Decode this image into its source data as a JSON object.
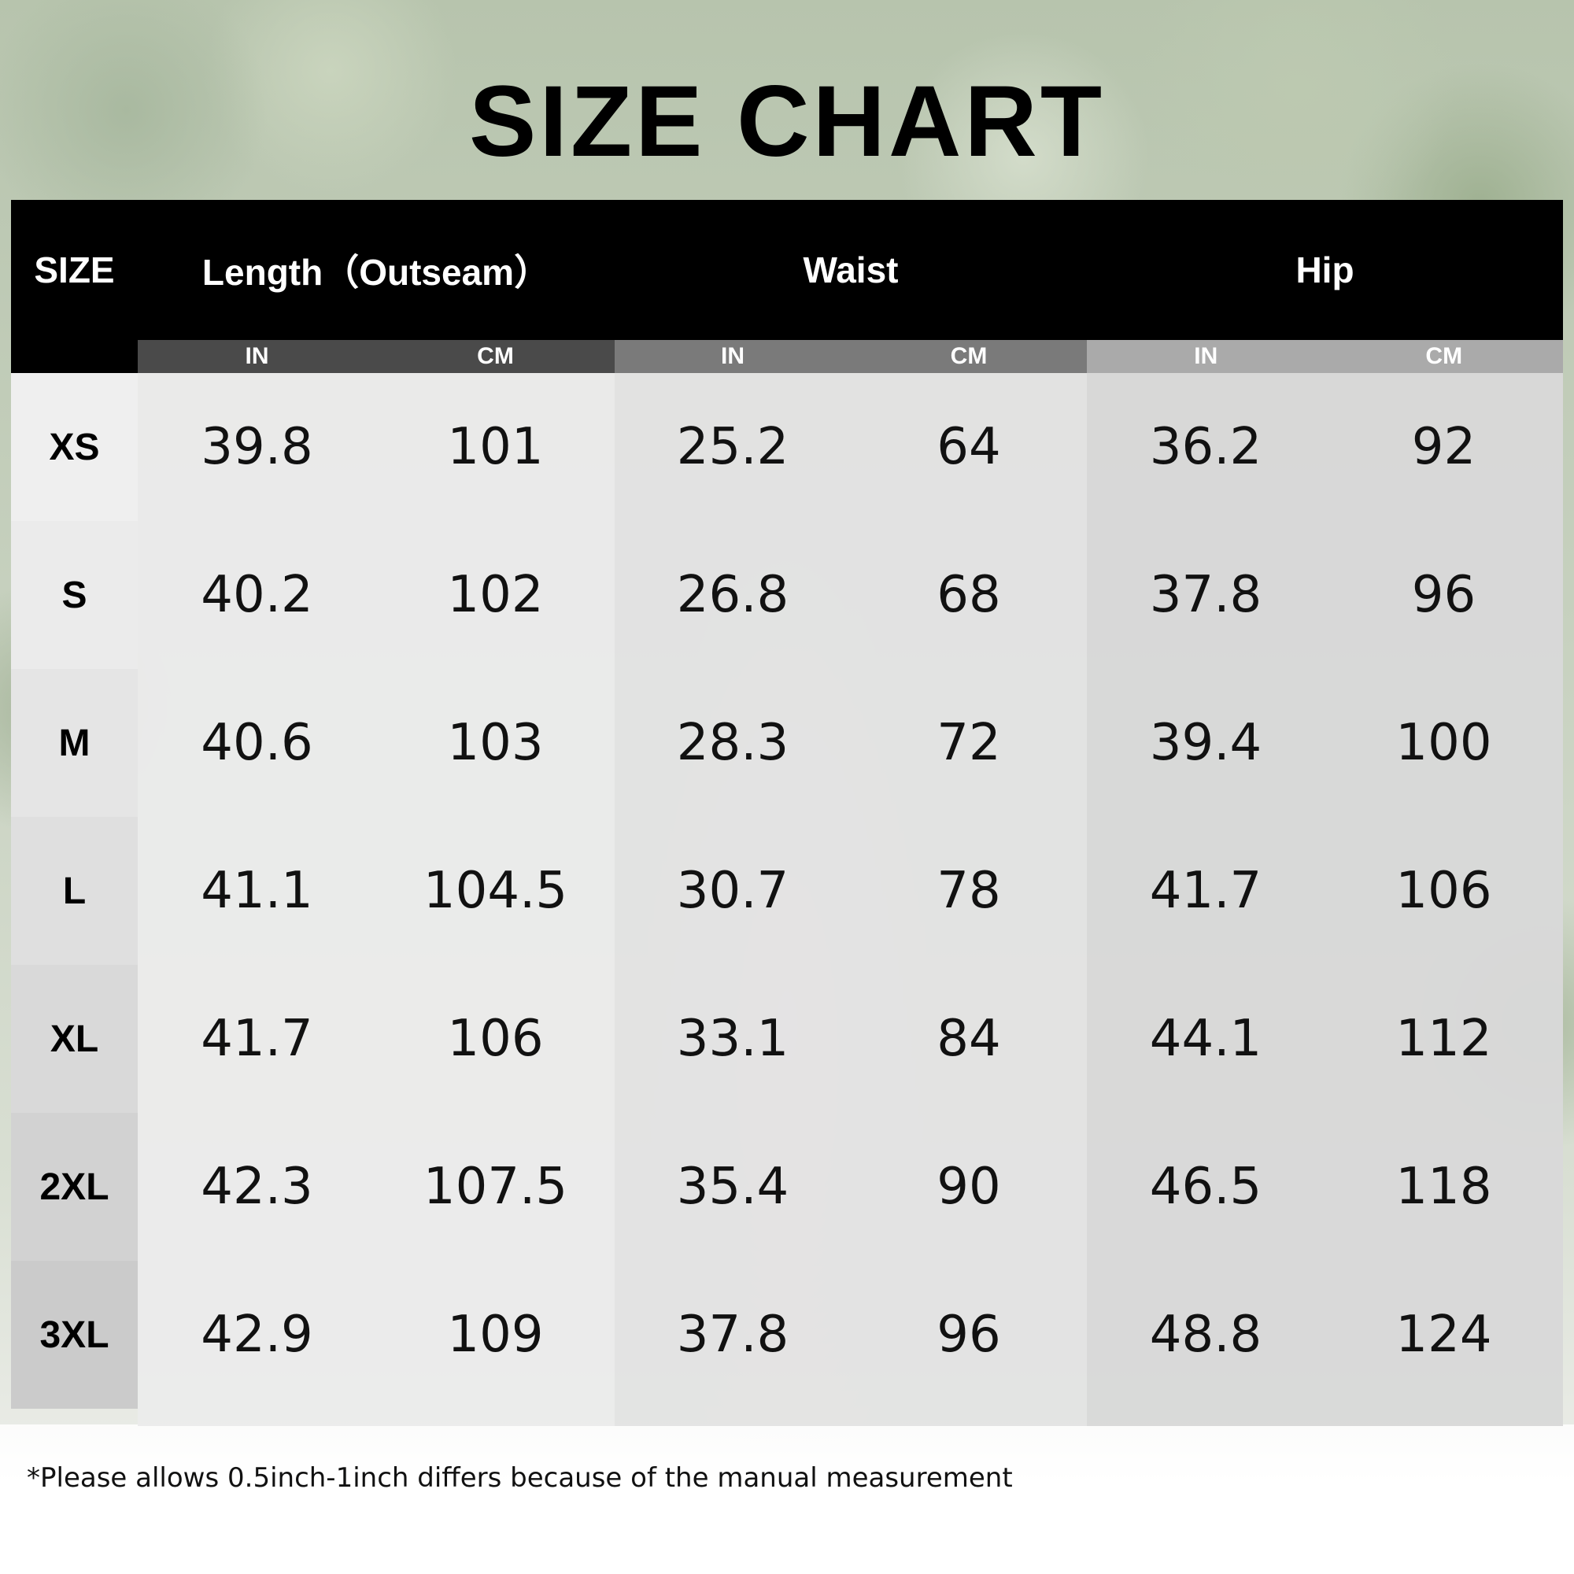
{
  "title": "SIZE CHART",
  "headers": {
    "size": "SIZE",
    "length": "Length（Outseam）",
    "waist": "Waist",
    "hip": "Hip",
    "in": "IN",
    "cm": "CM"
  },
  "rows": [
    {
      "size": "XS",
      "length_in": "39.8",
      "length_cm": "101",
      "waist_in": "25.2",
      "waist_cm": "64",
      "hip_in": "36.2",
      "hip_cm": "92"
    },
    {
      "size": "S",
      "length_in": "40.2",
      "length_cm": "102",
      "waist_in": "26.8",
      "waist_cm": "68",
      "hip_in": "37.8",
      "hip_cm": "96"
    },
    {
      "size": "M",
      "length_in": "40.6",
      "length_cm": "103",
      "waist_in": "28.3",
      "waist_cm": "72",
      "hip_in": "39.4",
      "hip_cm": "100"
    },
    {
      "size": "L",
      "length_in": "41.1",
      "length_cm": "104.5",
      "waist_in": "30.7",
      "waist_cm": "78",
      "hip_in": "41.7",
      "hip_cm": "106"
    },
    {
      "size": "XL",
      "length_in": "41.7",
      "length_cm": "106",
      "waist_in": "33.1",
      "waist_cm": "84",
      "hip_in": "44.1",
      "hip_cm": "112"
    },
    {
      "size": "2XL",
      "length_in": "42.3",
      "length_cm": "107.5",
      "waist_in": "35.4",
      "waist_cm": "90",
      "hip_in": "46.5",
      "hip_cm": "118"
    },
    {
      "size": "3XL",
      "length_in": "42.9",
      "length_cm": "109",
      "waist_in": "37.8",
      "waist_cm": "96",
      "hip_in": "48.8",
      "hip_cm": "124"
    }
  ],
  "note": "*Please allows 0.5inch-1inch differs because of the manual measurement",
  "colors": {
    "header": "#000000",
    "length_sub": "#4a4a4a",
    "waist_sub": "#7a7a7a",
    "hip_sub": "#aaaaaa",
    "length_body": "#ebebeb",
    "waist_body": "#e3e3e3",
    "hip_body": "#d9d9d9"
  }
}
